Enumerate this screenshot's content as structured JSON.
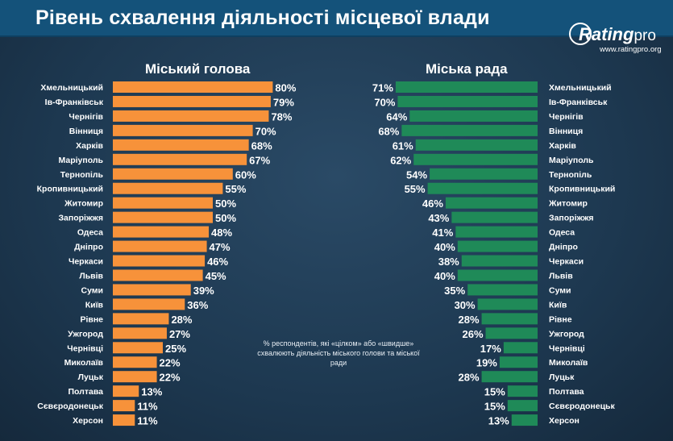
{
  "header": {
    "title": "Рівень схвалення діяльності місцевої влади"
  },
  "logo": {
    "brand": "Rating",
    "brand_suffix": "pro",
    "url": "www.ratingpro.org"
  },
  "note": "% респондентів, які «цілком» або «швидше» схвалюють діяльність міського голови та міської ради",
  "colors": {
    "mayor_bar": "#f7923a",
    "council_bar": "#1f8a58",
    "background": "#1f3a52",
    "header": "#14527a"
  },
  "chart_data": [
    {
      "type": "bar",
      "orientation": "horizontal",
      "title": "Міський голова",
      "unit": "%",
      "xlim": [
        0,
        100
      ],
      "categories": [
        "Хмельницький",
        "Ів-Франківськ",
        "Чернігів",
        "Вінниця",
        "Харків",
        "Маріуполь",
        "Тернопіль",
        "Кропивницький",
        "Житомир",
        "Запоріжжя",
        "Одеса",
        "Дніпро",
        "Черкаси",
        "Львів",
        "Суми",
        "Київ",
        "Рівне",
        "Ужгород",
        "Чернівці",
        "Миколаїв",
        "Луцьк",
        "Полтава",
        "Сєвєродонецьк",
        "Херсон"
      ],
      "values": [
        80,
        79,
        78,
        70,
        68,
        67,
        60,
        55,
        50,
        50,
        48,
        47,
        46,
        45,
        39,
        36,
        28,
        27,
        25,
        22,
        22,
        13,
        11,
        11
      ]
    },
    {
      "type": "bar",
      "orientation": "horizontal",
      "title": "Міська рада",
      "unit": "%",
      "xlim": [
        0,
        100
      ],
      "categories": [
        "Хмельницький",
        "Ів-Франківськ",
        "Чернігів",
        "Вінниця",
        "Харків",
        "Маріуполь",
        "Тернопіль",
        "Кропивницький",
        "Житомир",
        "Запоріжжя",
        "Одеса",
        "Дніпро",
        "Черкаси",
        "Львів",
        "Суми",
        "Київ",
        "Рівне",
        "Ужгород",
        "Чернівці",
        "Миколаїв",
        "Луцьк",
        "Полтава",
        "Сєвєродонецьк",
        "Херсон"
      ],
      "values": [
        71,
        70,
        64,
        68,
        61,
        62,
        54,
        55,
        46,
        43,
        41,
        40,
        38,
        40,
        35,
        30,
        28,
        26,
        17,
        19,
        28,
        15,
        15,
        13
      ]
    }
  ]
}
